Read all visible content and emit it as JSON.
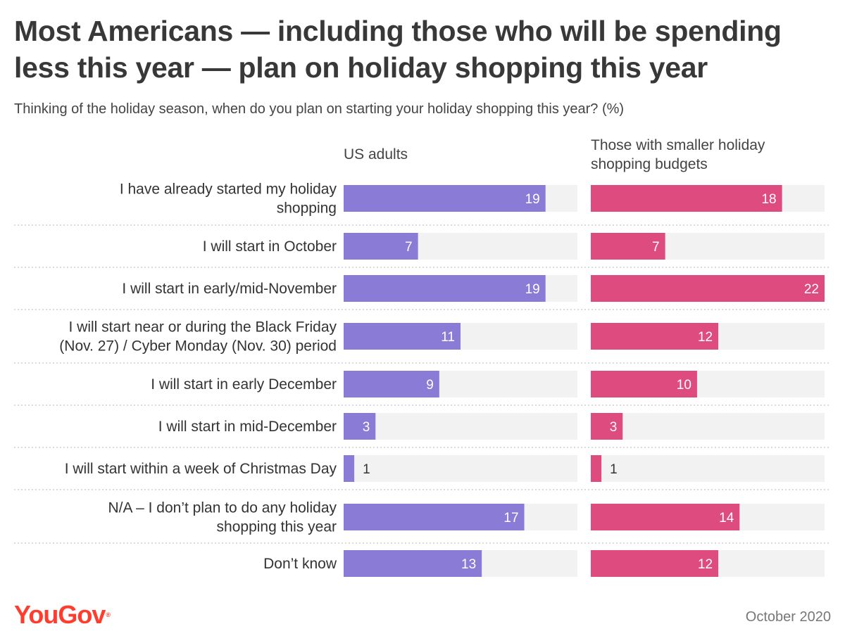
{
  "title": "Most Americans — including those who will be spending less this year — plan on holiday shopping this year",
  "subtitle": "Thinking of the holiday season, when do you plan on starting your holiday shopping this year? (%)",
  "footer": {
    "brand": "YouGov",
    "brand_mark": "®",
    "date": "October 2020"
  },
  "colors": {
    "us_adults": "#8a7bd6",
    "smaller_budgets": "#de4b7e",
    "track": "#f2f2f2",
    "divider": "#c8c8c8"
  },
  "chart_data": {
    "type": "bar",
    "orientation": "horizontal",
    "title": "Most Americans — including those who will be spending less this year — plan on holiday shopping this year",
    "subtitle": "Thinking of the holiday season, when do you plan on starting your holiday shopping this year? (%)",
    "xlim": [
      0,
      22
    ],
    "categories": [
      [
        "I have already started my holiday",
        "shopping"
      ],
      [
        "I will start in October"
      ],
      [
        "I will start in early/mid-November"
      ],
      [
        "I will start near or during the Black Friday",
        "(Nov. 27) / Cyber Monday (Nov. 30) period"
      ],
      [
        "I will start in early December"
      ],
      [
        "I will start in mid-December"
      ],
      [
        "I will start within a week of Christmas Day"
      ],
      [
        "N/A – I don’t plan to do any holiday",
        "shopping this year"
      ],
      [
        "Don’t know"
      ]
    ],
    "series": [
      {
        "name": [
          "US adults"
        ],
        "values": [
          19,
          7,
          19,
          11,
          9,
          3,
          1,
          17,
          13
        ]
      },
      {
        "name": [
          "Those with smaller holiday",
          "shopping budgets"
        ],
        "values": [
          18,
          7,
          22,
          12,
          10,
          3,
          1,
          14,
          12
        ]
      }
    ]
  }
}
